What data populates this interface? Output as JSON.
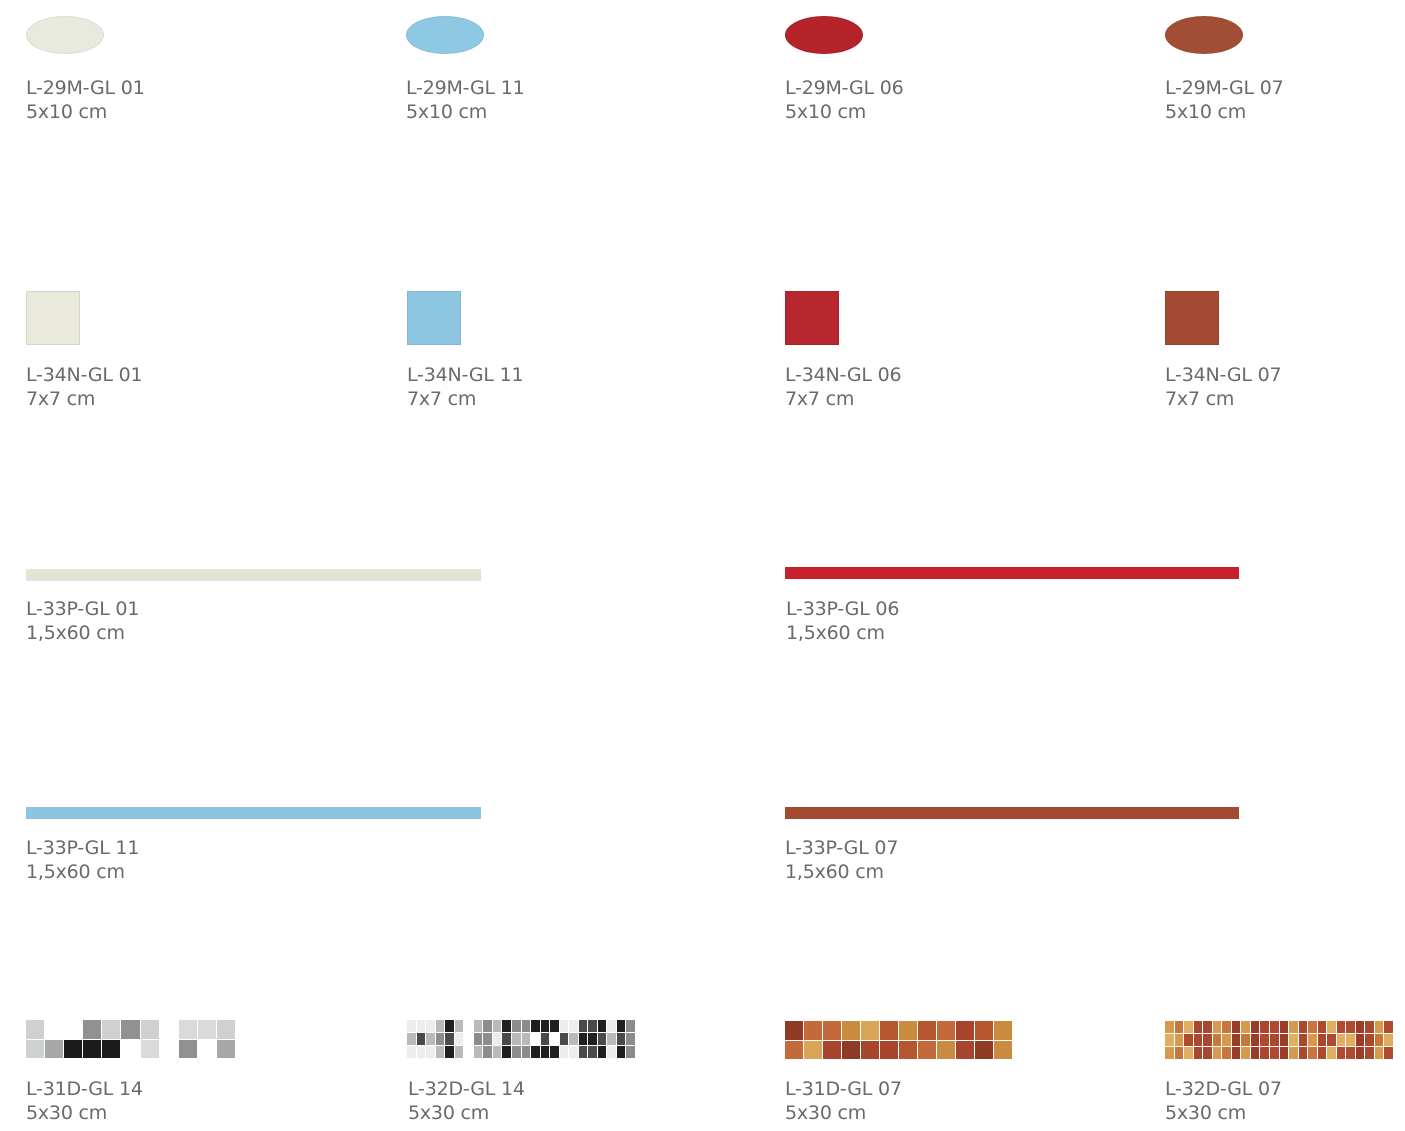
{
  "rows": [
    {
      "shape": "oval",
      "items": [
        {
          "code": "L-29M-GL 01",
          "size": "5x10 cm",
          "color": "#e9eadf"
        },
        {
          "code": "L-29M-GL 11",
          "size": "5x10 cm",
          "color": "#8ec8e2"
        },
        {
          "code": "L-29M-GL 06",
          "size": "5x10 cm",
          "color": "#b4222a"
        },
        {
          "code": "L-29M-GL 07",
          "size": "5x10 cm",
          "color": "#a24e35"
        }
      ]
    },
    {
      "shape": "square",
      "items": [
        {
          "code": "L-34N-GL 01",
          "size": "7x7 cm",
          "color": "#e9eadb"
        },
        {
          "code": "L-34N-GL 11",
          "size": "7x7 cm",
          "color": "#8dc6e0"
        },
        {
          "code": "L-34N-GL 06",
          "size": "7x7 cm",
          "color": "#b82730"
        },
        {
          "code": "L-34N-GL 07",
          "size": "7x7 cm",
          "color": "#a34b32"
        }
      ]
    },
    {
      "shape": "strip",
      "items": [
        {
          "code": "L-33P-GL 01",
          "size": "1,5x60 cm",
          "color": "#e3e4d6"
        },
        {
          "code": "L-33P-GL 06",
          "size": "1,5x60 cm",
          "color": "#c8202c"
        }
      ]
    },
    {
      "shape": "strip",
      "items": [
        {
          "code": "L-33P-GL 11",
          "size": "1,5x60 cm",
          "color": "#8cc5e1"
        },
        {
          "code": "L-33P-GL 07",
          "size": "1,5x60 cm",
          "color": "#a44a30"
        }
      ]
    },
    {
      "shape": "mosaic",
      "items": [
        {
          "code": "L-31D-GL 14",
          "size": "5x30 cm",
          "palette": [
            "#d9dbd8",
            "#1b1b1b",
            "#a6a8a8",
            "#ffffff",
            "#cfd1cf",
            "#8f9291"
          ]
        },
        {
          "code": "L-32D-GL 14",
          "size": "5x30 cm",
          "palette": [
            "#1f1f1f",
            "#ededed",
            "#8c8c8c",
            "#b9b9b9",
            "#4a4a4a",
            "#ffffff"
          ]
        },
        {
          "code": "L-31D-GL 07",
          "size": "5x30 cm",
          "palette": [
            "#a8442c",
            "#c98b3d",
            "#b5562f",
            "#d8a456",
            "#8f3a25",
            "#c46a3a"
          ]
        },
        {
          "code": "L-32D-GL 07",
          "size": "5x30 cm",
          "palette": [
            "#b04a2f",
            "#d79a4c",
            "#9c3c28",
            "#c7763c",
            "#e0ae60",
            "#a8492f"
          ]
        }
      ]
    }
  ]
}
